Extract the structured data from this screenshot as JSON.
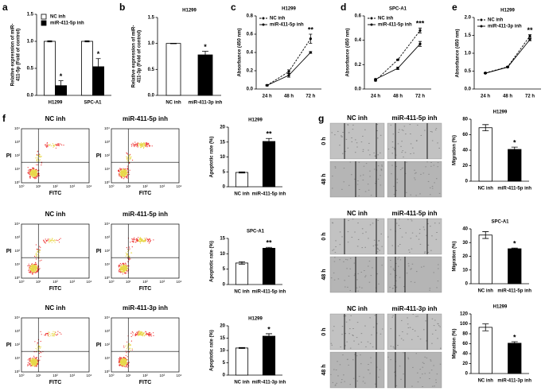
{
  "chart_data": [
    {
      "type": "bar",
      "panel": "a",
      "ylabel": [
        "Relative expression of miR-",
        "411-5p (Fold of control)"
      ],
      "categories": [
        "H1299",
        "SPC-A1"
      ],
      "series": [
        {
          "name": "NC inh",
          "color": "#ffffff",
          "values": [
            1,
            1
          ],
          "errors": [
            0.01,
            0.01
          ]
        },
        {
          "name": "miR-411-5p inh",
          "color": "#000000",
          "values": [
            0.18,
            0.53
          ],
          "errors": [
            0.09,
            0.15
          ]
        }
      ],
      "annotations": [
        "*",
        "*"
      ],
      "legend": "upper left",
      "ylim": [
        0,
        1.5
      ],
      "yticks": [
        {
          "value": 0,
          "label": "0.0"
        },
        0.5,
        {
          "value": 1,
          "label": "1.0"
        },
        1.5
      ]
    },
    {
      "type": "bar",
      "panel": "b",
      "title": "H1299",
      "ylabel": [
        "Relative expression of miR-",
        "411-3p (Fold of control)"
      ],
      "categories": [
        "NC inh",
        "miR-411-3p inh"
      ],
      "values": [
        1,
        0.78
      ],
      "errors": [
        0.005,
        0.07
      ],
      "colors": [
        "#ffffff",
        "#000000"
      ],
      "annotations": [
        null,
        "*"
      ],
      "ylim": [
        0,
        1.5
      ],
      "yticks": [
        {
          "value": 0,
          "label": "0.0"
        },
        0.5,
        {
          "value": 1,
          "label": "1.0"
        },
        1.5
      ]
    },
    {
      "type": "line",
      "panel": "c",
      "title": "H1299",
      "ylabel": "Absorbance (450 nm)",
      "categories": [
        "24 h",
        "48 h",
        "72 h"
      ],
      "series": [
        {
          "name": "NC inh",
          "color": "#000000",
          "linestyle": "dashed",
          "values": [
            0.04,
            0.19,
            0.55
          ],
          "errors": [
            0.005,
            0.02,
            0.05
          ]
        },
        {
          "name": "miR-411-5p inh",
          "color": "#000000",
          "linestyle": "solid",
          "values": [
            0.04,
            0.15,
            0.4
          ],
          "errors": [
            0.005,
            0.02,
            0.01
          ]
        }
      ],
      "annotations": [
        null,
        null,
        "**"
      ],
      "legend": "upper left",
      "ylim": [
        0,
        0.8
      ],
      "yticks": [
        {
          "value": 0,
          "label": "0.0"
        },
        0.2,
        0.4,
        0.6,
        0.8
      ]
    },
    {
      "type": "line",
      "panel": "d",
      "title": "SPC-A1",
      "ylabel": "Absorbance (450 nm)",
      "categories": [
        "24 h",
        "48 h",
        "72 h"
      ],
      "series": [
        {
          "name": "NC inh",
          "color": "#000000",
          "linestyle": "dashed",
          "values": [
            0.07,
            0.24,
            0.48
          ],
          "errors": [
            0.005,
            0.005,
            0.02
          ]
        },
        {
          "name": "miR-411-5p inh",
          "color": "#000000",
          "linestyle": "solid",
          "values": [
            0.08,
            0.17,
            0.37
          ],
          "errors": [
            0.005,
            0.01,
            0.02
          ]
        }
      ],
      "annotations": [
        null,
        null,
        "***"
      ],
      "legend": "upper left",
      "ylim": [
        0,
        0.6
      ],
      "yticks": [
        {
          "value": 0,
          "label": "0.0"
        },
        0.2,
        0.4,
        0.6
      ]
    },
    {
      "type": "line",
      "panel": "e",
      "title": "H1299",
      "ylabel": "Absorbance (450 nm)",
      "categories": [
        "24 h",
        "48 h",
        "72 h"
      ],
      "series": [
        {
          "name": "NC inh",
          "color": "#000000",
          "linestyle": "dashed",
          "values": [
            0.45,
            0.62,
            1.48
          ],
          "errors": [
            0.01,
            0.01,
            0.04
          ]
        },
        {
          "name": "miR-411-3p inh",
          "color": "#000000",
          "linestyle": "solid",
          "values": [
            0.44,
            0.61,
            1.38
          ],
          "errors": [
            0.01,
            0.01,
            0.03
          ]
        }
      ],
      "annotations": [
        null,
        null,
        "**"
      ],
      "legend": "upper left",
      "ylim": [
        0,
        2
      ],
      "yticks": [
        {
          "value": 0,
          "label": "0.0"
        },
        0.5,
        {
          "value": 1,
          "label": "1.0"
        },
        1.5,
        {
          "value": 2,
          "label": "2.0"
        }
      ]
    },
    {
      "type": "bar",
      "title": "H1299",
      "ylabel": "Apoptotic rate (%)",
      "categories": [
        "NC inh",
        "miR-411-5p inh"
      ],
      "values": [
        4.8,
        15.2
      ],
      "errors": [
        0.2,
        1
      ],
      "colors": [
        "#ffffff",
        "#000000"
      ],
      "annotations": [
        null,
        "**"
      ],
      "ylim": [
        0,
        20
      ],
      "yticks": [
        0,
        5,
        10,
        15,
        20
      ]
    },
    {
      "type": "bar",
      "title": "SPC-A1",
      "ylabel": "Apoptotic rate (%)",
      "categories": [
        "NC inh",
        "miR-411-5p inh"
      ],
      "values": [
        7,
        11.8
      ],
      "errors": [
        0.4,
        0.3
      ],
      "colors": [
        "#ffffff",
        "#000000"
      ],
      "annotations": [
        null,
        "**"
      ],
      "ylim": [
        0,
        15
      ],
      "yticks": [
        0,
        5,
        10,
        15
      ]
    },
    {
      "type": "bar",
      "title": "H1299",
      "ylabel": "Apoptotic rate (%)",
      "categories": [
        "NC inh",
        "miR-411-3p inh"
      ],
      "values": [
        11,
        15.8
      ],
      "errors": [
        0.2,
        1
      ],
      "colors": [
        "#ffffff",
        "#000000"
      ],
      "annotations": [
        null,
        "*"
      ],
      "ylim": [
        0,
        20
      ],
      "yticks": [
        0,
        5,
        10,
        15,
        20
      ]
    },
    {
      "type": "bar",
      "title": "H1299",
      "ylabel": "Migration (%)",
      "categories": [
        "NC inh",
        "miR-411-5p inh"
      ],
      "values": [
        69,
        41
      ],
      "errors": [
        4,
        3
      ],
      "colors": [
        "#ffffff",
        "#000000"
      ],
      "annotations": [
        null,
        "*"
      ],
      "ylim": [
        0,
        80
      ],
      "yticks": [
        0,
        20,
        40,
        60,
        80
      ]
    },
    {
      "type": "bar",
      "title": "SPC-A1",
      "ylabel": "Migration (%)",
      "categories": [
        "NC inh",
        "miR-411-5p inh"
      ],
      "values": [
        35.5,
        25.5
      ],
      "errors": [
        2.5,
        0.5
      ],
      "colors": [
        "#ffffff",
        "#000000"
      ],
      "annotations": [
        null,
        "*"
      ],
      "ylim": [
        0,
        40
      ],
      "yticks": [
        0,
        10,
        20,
        30,
        40
      ]
    },
    {
      "type": "bar",
      "title": "H1299",
      "ylabel": "Migration (%)",
      "categories": [
        "NC inh",
        "miR-411-3p inh"
      ],
      "values": [
        93,
        61
      ],
      "errors": [
        7,
        3
      ],
      "colors": [
        "#ffffff",
        "#000000"
      ],
      "annotations": [
        null,
        "*"
      ],
      "ylim": [
        0,
        120
      ],
      "yticks": [
        0,
        20,
        40,
        60,
        80,
        100,
        120
      ]
    }
  ],
  "flow": {
    "panel": "f",
    "rows": [
      {
        "left": "NC inh",
        "right": "miR-411-5p inh"
      },
      {
        "left": "NC inh",
        "right": "miR-411-5p inh"
      },
      {
        "left": "NC inh",
        "right": "miR-411-3p inh"
      }
    ],
    "y_label": "PI",
    "x_label": "FITC",
    "ticks": [
      "10⁰",
      "10¹",
      "10²",
      "10³",
      "10⁴"
    ]
  },
  "wound": {
    "panel": "g",
    "rows": [
      {
        "left": "NC inh",
        "right": "miR-411-5p inh"
      },
      {
        "left": "NC inh",
        "right": "miR-411-5p inh"
      },
      {
        "left": "NC inh",
        "right": "miR-411-3p inh"
      }
    ],
    "times": [
      "0 h",
      "48 h"
    ]
  }
}
